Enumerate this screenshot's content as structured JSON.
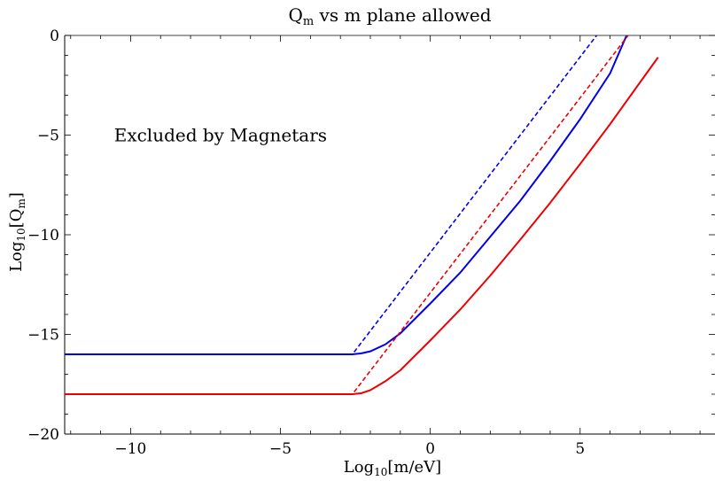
{
  "chart_data": {
    "type": "line",
    "title": "Q",
    "title_sub": "m",
    "title_rest": " vs m plane allowed",
    "xlabel": "Log",
    "xlabel_sub": "10",
    "xlabel_rest": "[m/eV]",
    "ylabel": "Log",
    "ylabel_sub": "10",
    "ylabel_mid": "[Q",
    "ylabel_sub2": "m",
    "ylabel_rest": "]",
    "xlim": [
      -12.2,
      9.5
    ],
    "ylim": [
      -20,
      0
    ],
    "xticks": [
      -10,
      -5,
      0,
      5
    ],
    "yticks": [
      0,
      -5,
      -10,
      -15,
      -20
    ],
    "xtick_labels": [
      "−10",
      "−5",
      "0",
      "5"
    ],
    "ytick_labels": [
      "0",
      "−5",
      "−10",
      "−15",
      "−20"
    ],
    "annotation": "Excluded by Magnetars",
    "annotation_pos": [
      -7.0,
      -5.0
    ],
    "colors": {
      "blue": "#0000ee",
      "red": "#ee0000"
    },
    "series": [
      {
        "color": "blue",
        "style": "solid",
        "x": [
          -12.2,
          -4.0,
          -3.0,
          -2.6,
          -2.3,
          -2.0,
          -1.5,
          -1.0,
          0.0,
          1.0,
          2.0,
          3.0,
          4.0,
          5.0,
          6.0,
          6.55
        ],
        "y": [
          -16.0,
          -16.0,
          -16.0,
          -16.0,
          -15.95,
          -15.85,
          -15.5,
          -14.95,
          -13.45,
          -11.9,
          -10.1,
          -8.3,
          -6.3,
          -4.2,
          -1.9,
          0
        ]
      },
      {
        "color": "blue",
        "style": "dashed",
        "x": [
          -12.2,
          -2.6,
          5.55
        ],
        "y": [
          -16.0,
          -16.0,
          0
        ]
      },
      {
        "color": "red",
        "style": "solid",
        "x": [
          -12.2,
          -4.0,
          -3.0,
          -2.6,
          -2.3,
          -2.0,
          -1.5,
          -1.0,
          0.0,
          1.0,
          2.0,
          3.0,
          4.0,
          5.0,
          6.0,
          7.0,
          7.6
        ],
        "y": [
          -18.0,
          -18.0,
          -18.0,
          -18.0,
          -17.95,
          -17.8,
          -17.35,
          -16.8,
          -15.3,
          -13.75,
          -12.05,
          -10.25,
          -8.4,
          -6.45,
          -4.45,
          -2.35,
          -1.1
        ]
      },
      {
        "color": "red",
        "style": "dashed",
        "x": [
          -12.2,
          -2.6,
          6.6
        ],
        "y": [
          -18.0,
          -18.0,
          0
        ]
      }
    ]
  }
}
